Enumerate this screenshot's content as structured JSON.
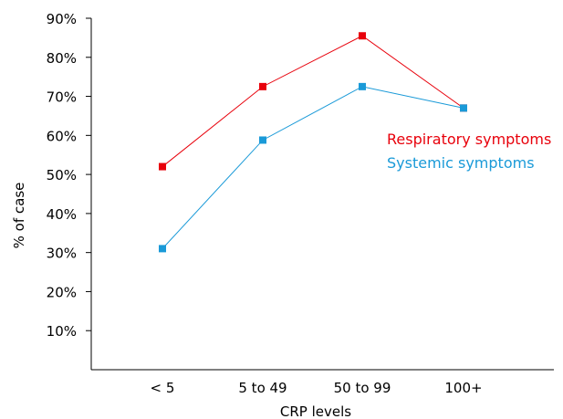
{
  "chart_data": {
    "type": "line",
    "categories": [
      "< 5",
      "5 to 49",
      "50 to 99",
      "100+"
    ],
    "series": [
      {
        "name": "Respiratory symptoms",
        "values": [
          52,
          72.5,
          85.5,
          67
        ],
        "color": "#e8000b"
      },
      {
        "name": "Systemic symptoms",
        "values": [
          31,
          58.8,
          72.5,
          67
        ],
        "color": "#1a9ad8"
      }
    ],
    "title": "",
    "xlabel": "CRP levels",
    "ylabel": "% of case",
    "ylim": [
      0,
      90
    ],
    "yticks": [
      10,
      20,
      30,
      40,
      50,
      60,
      70,
      80,
      90
    ],
    "ytick_labels": [
      "10%",
      "20%",
      "30%",
      "40%",
      "50%",
      "60%",
      "70%",
      "80%",
      "90%"
    ],
    "grid": false,
    "legend_position": "right"
  }
}
